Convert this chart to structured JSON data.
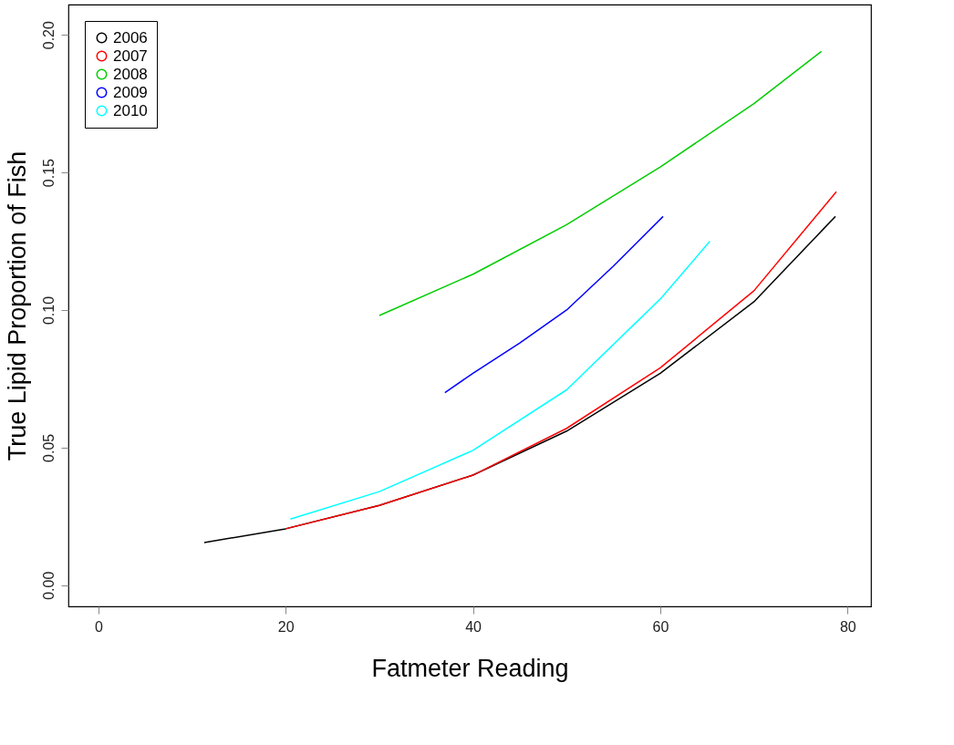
{
  "chart_data": {
    "type": "line",
    "xlabel": "Fatmeter Reading",
    "ylabel": "True Lipid Proportion of Fish",
    "xlim": [
      -3.2,
      82.5
    ],
    "ylim": [
      -0.0077,
      0.211
    ],
    "xticks": [
      0,
      20,
      40,
      60,
      80
    ],
    "yticks": [
      {
        "value": 0,
        "label": "0.00"
      },
      {
        "value": 0.05,
        "label": "0.05"
      },
      {
        "value": 0.1,
        "label": "0.10"
      },
      {
        "value": 0.15,
        "label": "0.15"
      },
      {
        "value": 0.2,
        "label": "0.20"
      }
    ],
    "grid": false,
    "legend": "top left",
    "marker": "none",
    "line_style": "solid",
    "series": [
      {
        "name": "2006",
        "color": "#000000",
        "x": [
          11.3,
          20,
          30,
          40,
          50,
          60,
          70,
          78.7
        ],
        "values": [
          0.0155,
          0.0205,
          0.029,
          0.04,
          0.056,
          0.077,
          0.103,
          0.134
        ]
      },
      {
        "name": "2007",
        "color": "#ff0000",
        "x": [
          20,
          30,
          40,
          50,
          60,
          70,
          78.8
        ],
        "values": [
          0.0205,
          0.029,
          0.04,
          0.057,
          0.079,
          0.107,
          0.143
        ]
      },
      {
        "name": "2008",
        "color": "#00cd00",
        "x": [
          30,
          40,
          50,
          60,
          70,
          77.2
        ],
        "values": [
          0.098,
          0.113,
          0.131,
          0.152,
          0.175,
          0.194
        ]
      },
      {
        "name": "2009",
        "color": "#0000ff",
        "x": [
          37,
          40,
          45,
          50,
          55,
          60.3
        ],
        "values": [
          0.07,
          0.077,
          0.088,
          0.1,
          0.116,
          0.134
        ]
      },
      {
        "name": "2010",
        "color": "#00ffff",
        "x": [
          20.5,
          30,
          40,
          50,
          60,
          65.3
        ],
        "values": [
          0.024,
          0.034,
          0.049,
          0.071,
          0.104,
          0.125
        ]
      }
    ]
  }
}
